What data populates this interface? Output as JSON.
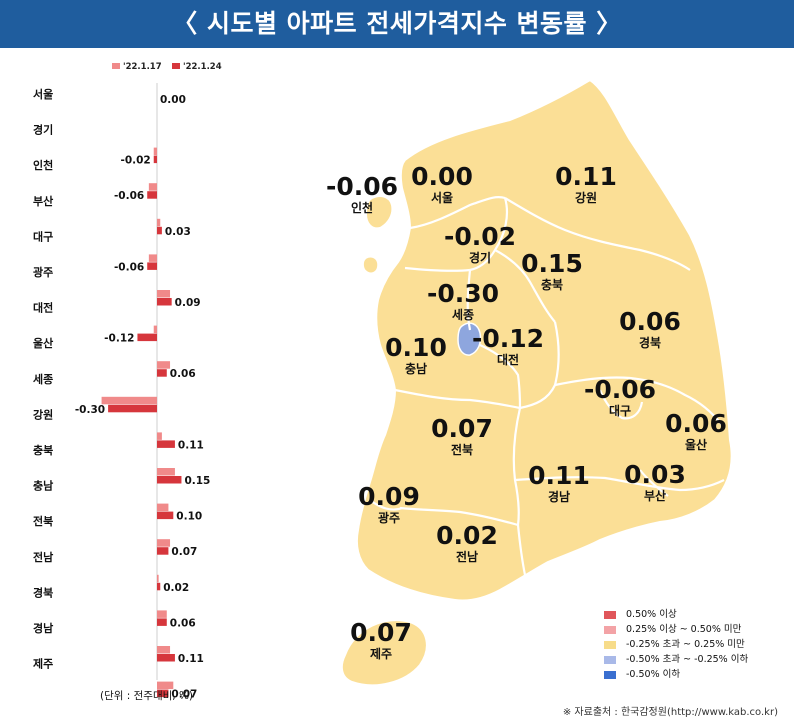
{
  "header": {
    "title": "〈 시도별 아파트 전세가격지수 변동률 〉"
  },
  "chart_data": [
    {
      "type": "bar",
      "orientation": "horizontal",
      "unit_note": "(단위 : 전주대비, %)",
      "categories": [
        "서울",
        "경기",
        "인천",
        "부산",
        "대구",
        "광주",
        "대전",
        "울산",
        "세종",
        "강원",
        "충북",
        "충남",
        "전북",
        "전남",
        "경북",
        "경남",
        "제주"
      ],
      "series": [
        {
          "name": "'22.1.17",
          "color": "#f08a8a",
          "values": [
            0.0,
            -0.02,
            -0.05,
            0.02,
            -0.05,
            0.08,
            -0.02,
            0.08,
            -0.34,
            0.03,
            0.11,
            0.07,
            0.08,
            0.01,
            0.06,
            0.08,
            0.1
          ]
        },
        {
          "name": "'22.1.24",
          "color": "#d6363c",
          "values": [
            0.0,
            -0.02,
            -0.06,
            0.03,
            -0.06,
            0.09,
            -0.12,
            0.06,
            -0.3,
            0.11,
            0.15,
            0.1,
            0.07,
            0.02,
            0.06,
            0.11,
            0.07
          ]
        }
      ],
      "data_labels": [
        "0.00",
        "-0.02",
        "-0.06",
        "0.03",
        "-0.06",
        "0.09",
        "-0.12",
        "0.06",
        "-0.30",
        "0.11",
        "0.15",
        "0.10",
        "0.07",
        "0.02",
        "0.06",
        "0.11",
        "0.07"
      ]
    },
    {
      "type": "map",
      "regions": [
        {
          "name": "인천",
          "value": "-0.06"
        },
        {
          "name": "서울",
          "value": "0.00"
        },
        {
          "name": "강원",
          "value": "0.11"
        },
        {
          "name": "경기",
          "value": "-0.02"
        },
        {
          "name": "충북",
          "value": "0.15"
        },
        {
          "name": "세종",
          "value": "-0.30"
        },
        {
          "name": "대전",
          "value": "-0.12"
        },
        {
          "name": "경북",
          "value": "0.06"
        },
        {
          "name": "충남",
          "value": "0.10"
        },
        {
          "name": "대구",
          "value": "-0.06"
        },
        {
          "name": "울산",
          "value": "0.06"
        },
        {
          "name": "전북",
          "value": "0.07"
        },
        {
          "name": "경남",
          "value": "0.11"
        },
        {
          "name": "부산",
          "value": "0.03"
        },
        {
          "name": "광주",
          "value": "0.09"
        },
        {
          "name": "전남",
          "value": "0.02"
        },
        {
          "name": "제주",
          "value": "0.07"
        }
      ],
      "legend": [
        {
          "label": "0.50% 이상",
          "color": "#e0565a"
        },
        {
          "label": "0.25% 이상 ~ 0.50% 미만",
          "color": "#f3a3a6"
        },
        {
          "label": "-0.25% 초과 ~ 0.25% 미만",
          "color": "#f7dc8a"
        },
        {
          "label": "-0.50% 초과 ~ -0.25% 이하",
          "color": "#a9b9e8"
        },
        {
          "label": "-0.50% 이하",
          "color": "#3a6fd0"
        }
      ]
    }
  ],
  "colors": {
    "map_fill": "#fbdf96",
    "map_stroke": "#ffffff",
    "sejong_fill": "#8ea6de",
    "header_bg": "#1f5d9e"
  },
  "footer": {
    "source": "※ 자료출처 : 한국감정원(http://www.kab.co.kr)"
  }
}
